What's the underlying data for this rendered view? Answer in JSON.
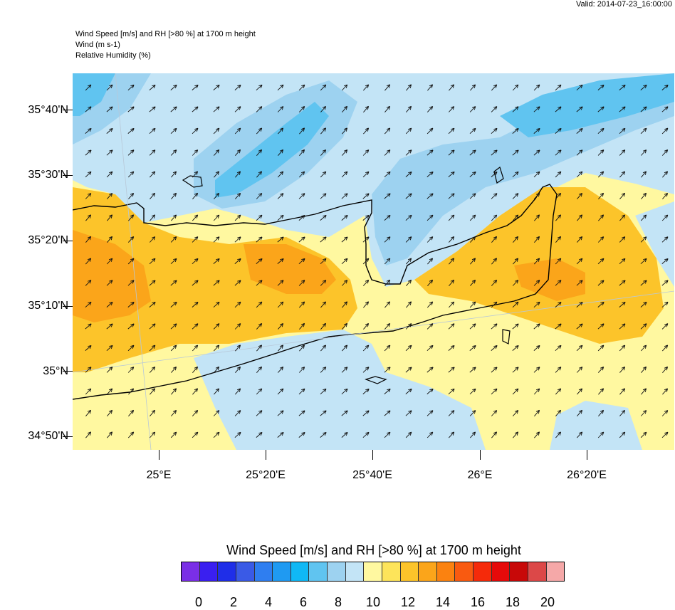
{
  "header": {
    "valid": "Valid: 2014-07-23_16:00:00",
    "title_lines": [
      "Wind Speed [m/s] and RH [>80 %] at 1700 m height",
      "Wind   (m s-1)",
      "Relative Humidity   (%)"
    ]
  },
  "axes": {
    "lat_labels": [
      "35°40'N",
      "35°30'N",
      "35°20'N",
      "35°10'N",
      "35°N",
      "34°50'N"
    ],
    "lat_values": [
      35.6667,
      35.5,
      35.3333,
      35.1667,
      35.0,
      34.8333
    ],
    "lon_labels": [
      "25°E",
      "25°20'E",
      "25°40'E",
      "26°E",
      "26°20'E"
    ],
    "lon_values": [
      25.0,
      25.3333,
      25.6667,
      26.0,
      26.3333
    ]
  },
  "colorbar": {
    "title": "Wind Speed [m/s] and RH [>80 %] at 1700 m height",
    "labels": [
      "0",
      "2",
      "4",
      "6",
      "8",
      "10",
      "12",
      "14",
      "16",
      "18",
      "20"
    ],
    "colors": [
      "#7a2fe6",
      "#3a1ff0",
      "#1f2ee8",
      "#3a5ae6",
      "#2f7ef0",
      "#1f9af2",
      "#10b8f5",
      "#60c4f0",
      "#9dd2f0",
      "#c3e4f6",
      "#fff8a0",
      "#fde45a",
      "#fcc42a",
      "#fba51a",
      "#fb8210",
      "#f95a10",
      "#f52a0a",
      "#e60a0a",
      "#c80808",
      "#dc4848",
      "#f5a8a8"
    ]
  },
  "map": {
    "dominant_colors": {
      "land_yellow": "#fff8a0",
      "orange": "#fcc42a",
      "light_blue": "#c3e4f6",
      "blue": "#60c4f0"
    }
  }
}
